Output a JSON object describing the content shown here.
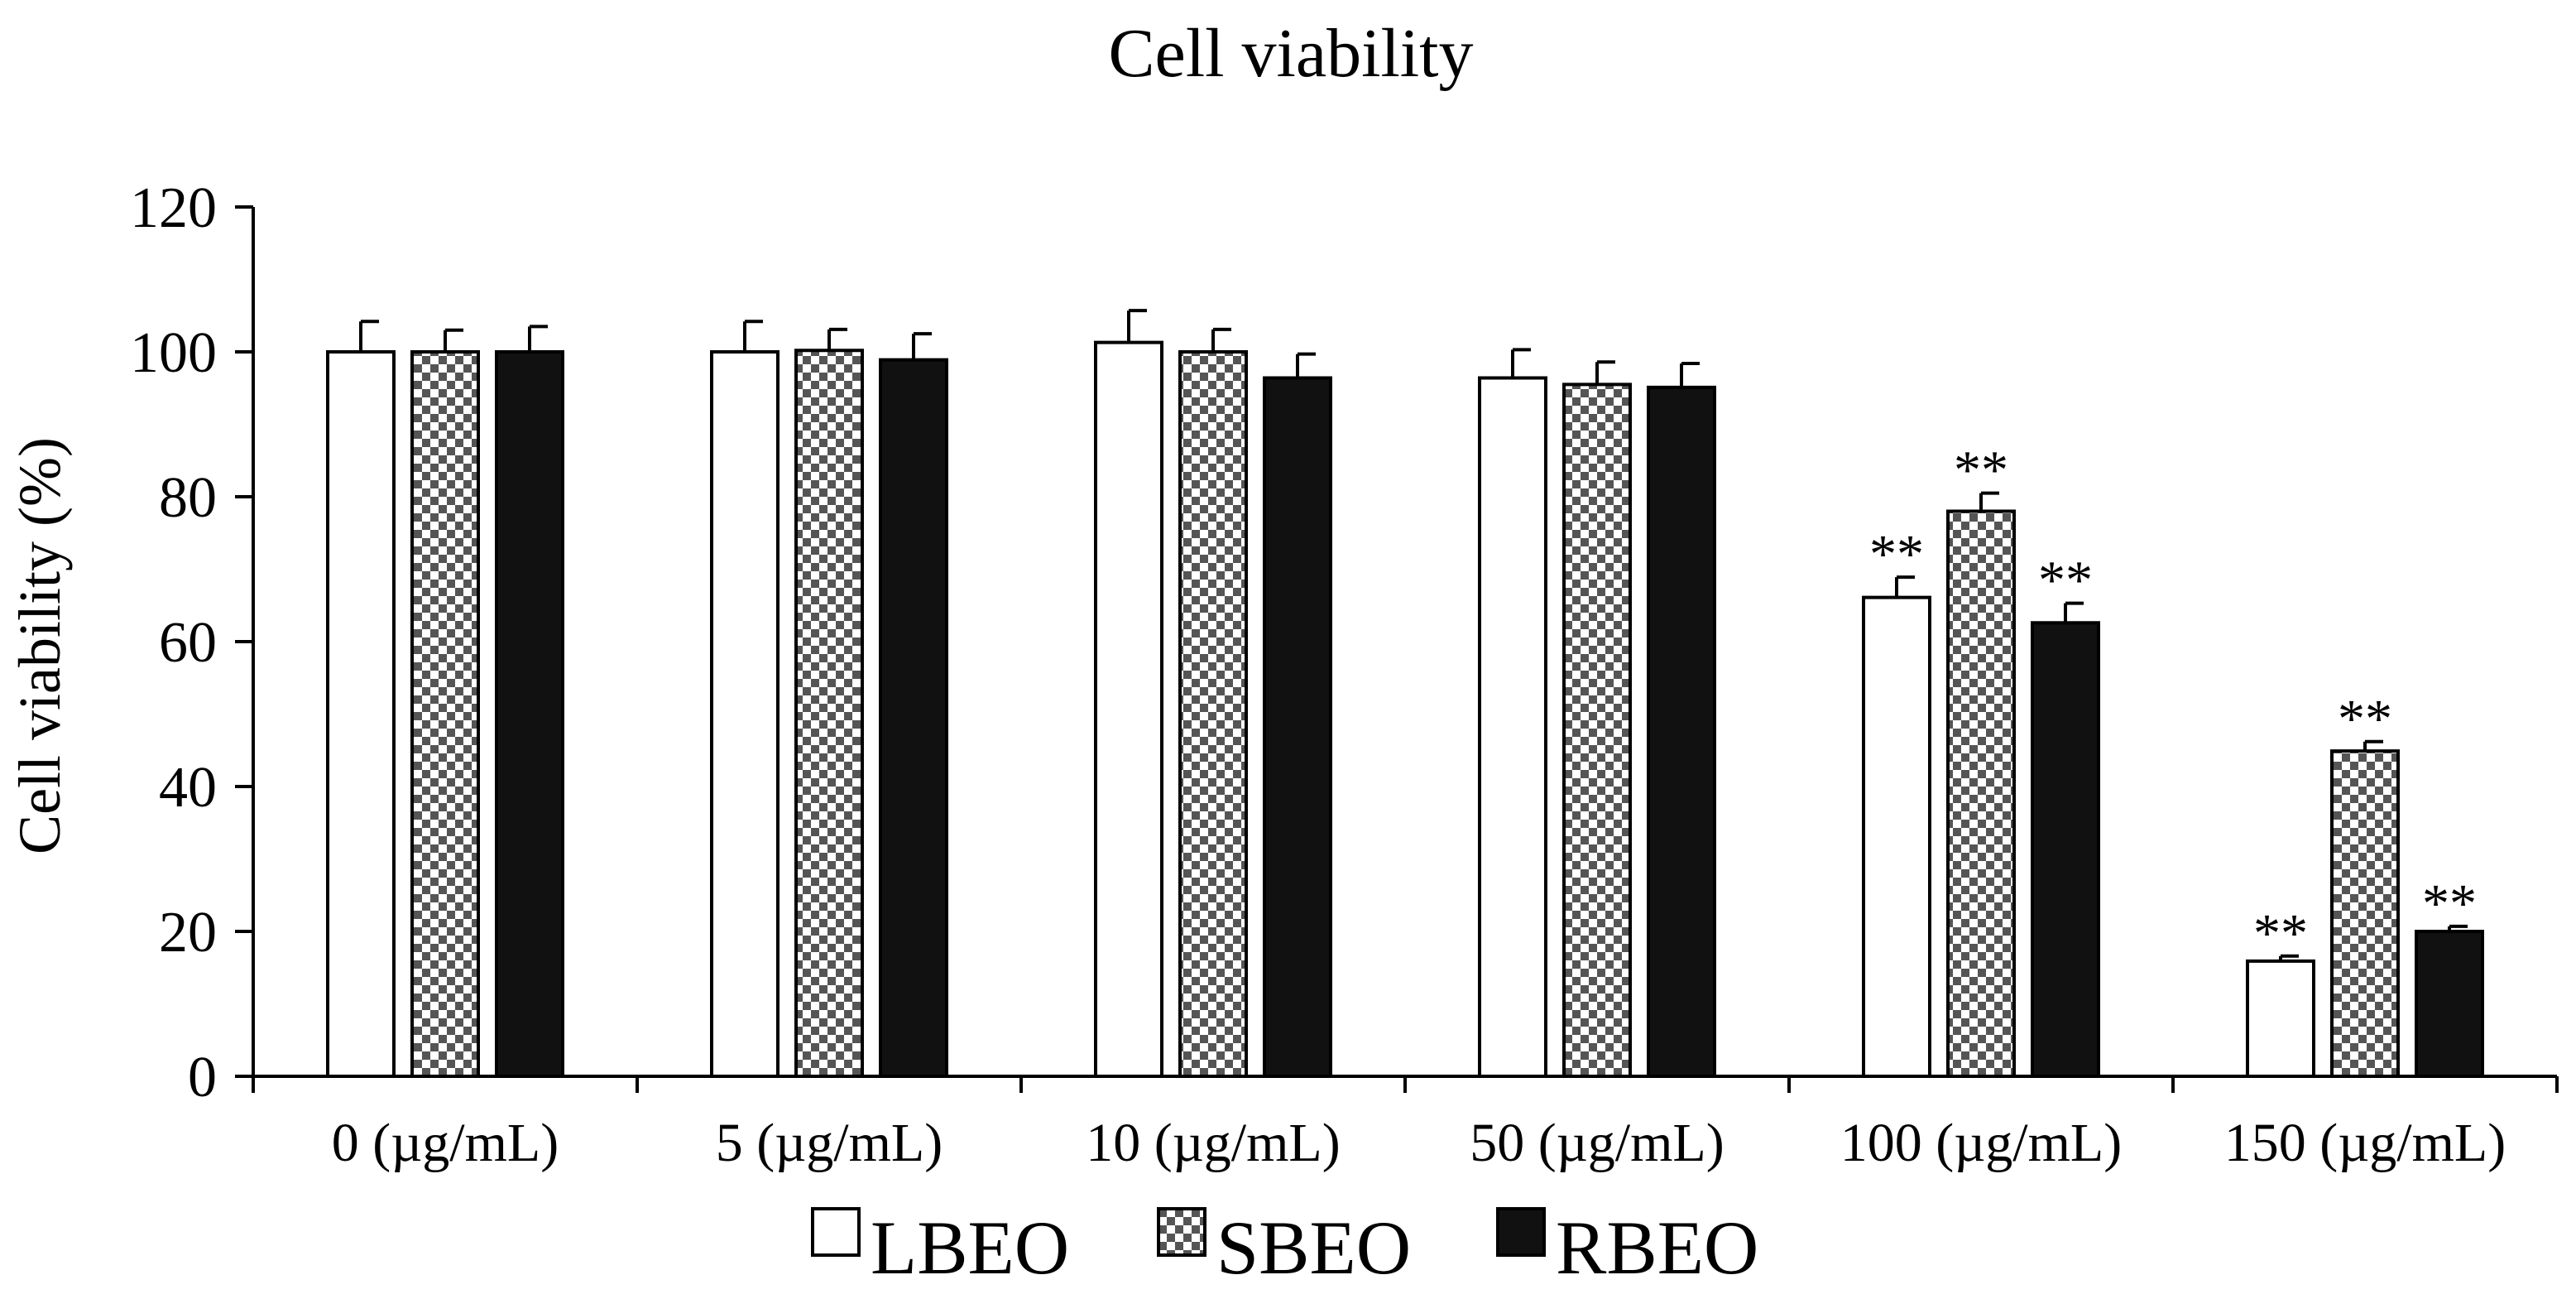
{
  "chart_data": {
    "type": "bar",
    "title": "Cell viability",
    "xlabel": "",
    "ylabel": "Cell viability (%)",
    "ylim": [
      0,
      120
    ],
    "yticks": [
      0,
      20,
      40,
      60,
      80,
      100,
      120
    ],
    "categories": [
      "0 (µg/mL)",
      "5 (µg/mL)",
      "10 (µg/mL)",
      "50 (µg/mL)",
      "100 (µg/mL)",
      "150 (µg/mL)"
    ],
    "series": [
      {
        "name": "LBEO",
        "pattern": "white",
        "values": [
          100,
          100,
          101.3,
          96.4,
          66.1,
          15.9
        ],
        "errors": [
          4.2,
          4.2,
          4.4,
          3.9,
          2.8,
          0.7
        ],
        "significance": [
          "",
          "",
          "",
          "",
          "**",
          "**"
        ]
      },
      {
        "name": "SBEO",
        "pattern": "checker",
        "values": [
          100,
          100.2,
          100,
          95.5,
          78,
          44.9
        ],
        "errors": [
          3.0,
          2.9,
          3.1,
          3.1,
          2.5,
          1.3
        ],
        "significance": [
          "",
          "",
          "",
          "",
          "**",
          "**"
        ]
      },
      {
        "name": "RBEO",
        "pattern": "black",
        "values": [
          100,
          98.9,
          96.4,
          95.1,
          62.6,
          20
        ],
        "errors": [
          3.5,
          3.6,
          3.3,
          3.3,
          2.7,
          0.7
        ],
        "significance": [
          "",
          "",
          "",
          "",
          "**",
          "**"
        ]
      }
    ],
    "colors": {
      "axis": "#000000",
      "bar_outline": "#000000",
      "white_fill": "#ffffff",
      "black_fill": "#111111",
      "checker_dark": "#555555",
      "checker_light": "#ffffff"
    },
    "legend_position": "bottom-center",
    "grid": false
  }
}
